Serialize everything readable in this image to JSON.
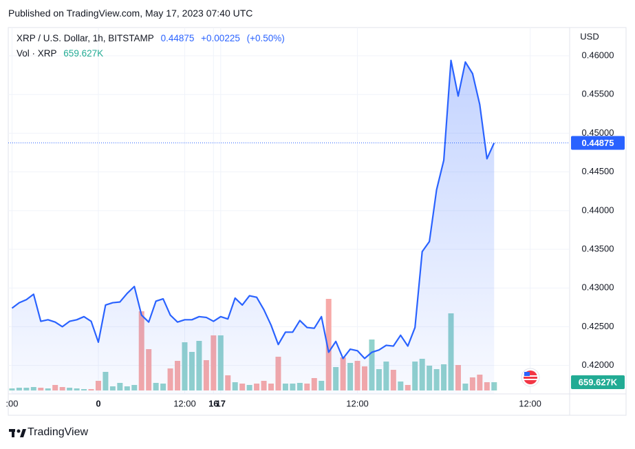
{
  "published": "Published on TradingView.com, May 17, 2023 07:40 UTC",
  "header": {
    "change": "+0.00225",
    "change_pct": "(+0.50%)"
  },
  "brand": "TradingView",
  "chart_data": {
    "type": "line",
    "y_unit": "USD",
    "grid": true,
    "x": [
      -12,
      -11,
      -10,
      -9,
      -8,
      -7,
      -6,
      -5,
      -4,
      -3,
      -2,
      -1,
      0,
      1,
      2,
      3,
      4,
      5,
      6,
      7,
      8,
      9,
      10,
      11,
      12,
      13,
      14,
      15,
      16,
      17,
      18,
      19,
      20,
      21,
      22,
      23,
      24,
      25,
      26,
      27,
      28,
      29,
      30,
      31,
      32,
      33,
      34,
      35,
      36,
      37,
      38,
      39,
      40,
      41,
      42,
      43,
      44,
      45,
      46,
      47,
      48,
      49,
      50,
      51,
      52,
      53,
      54,
      55
    ],
    "xlim": [
      -12.52,
      65.49
    ],
    "xticks": [
      {
        "value": -12,
        "label": ":00"
      },
      0,
      {
        "value": 12,
        "label": "12:00"
      },
      16,
      {
        "value": 36,
        "label": "12:00"
      },
      17,
      {
        "value": 60,
        "label": "12:00"
      }
    ],
    "ylim": [
      0.41632,
      0.46365
    ],
    "yticks": [
      {
        "value": 0.42,
        "label": "0.42000"
      },
      {
        "value": 0.425,
        "label": "0.42500"
      },
      {
        "value": 0.43,
        "label": "0.43000"
      },
      {
        "value": 0.435,
        "label": "0.43500"
      },
      {
        "value": 0.44,
        "label": "0.44000"
      },
      {
        "value": 0.445,
        "label": "0.44500"
      },
      {
        "value": 0.45,
        "label": "0.45000"
      },
      {
        "value": 0.455,
        "label": "0.45500"
      },
      {
        "value": 0.46,
        "label": "0.46000"
      }
    ],
    "series": [
      {
        "name": "XRP / U.S. Dollar, 1h, BITSTAMP",
        "color": "#2962ff",
        "values": [
          0.4274,
          0.4281,
          0.4285,
          0.4292,
          0.4257,
          0.4259,
          0.4256,
          0.425,
          0.4257,
          0.4259,
          0.4263,
          0.4257,
          0.423,
          0.4278,
          0.4281,
          0.4282,
          0.4293,
          0.4302,
          0.4265,
          0.4256,
          0.4283,
          0.4286,
          0.4265,
          0.4256,
          0.4259,
          0.4259,
          0.4263,
          0.4262,
          0.4257,
          0.4263,
          0.426,
          0.4287,
          0.4278,
          0.429,
          0.4288,
          0.4272,
          0.4252,
          0.4227,
          0.4243,
          0.4243,
          0.4258,
          0.4249,
          0.4248,
          0.4263,
          0.4217,
          0.4231,
          0.4209,
          0.4221,
          0.4219,
          0.4209,
          0.4217,
          0.422,
          0.4226,
          0.4225,
          0.4239,
          0.4225,
          0.4249,
          0.4347,
          0.436,
          0.4427,
          0.4465,
          0.4594,
          0.4548,
          0.4592,
          0.4577,
          0.4537,
          0.4467,
          0.44875
        ]
      },
      {
        "name": "Vol · XRP",
        "type": "bar",
        "up_color": "#92d2cc",
        "down_color": "#f7a9a7",
        "last_value_label": "659.627K",
        "values": [
          165000,
          220000,
          220000,
          275000,
          220000,
          165000,
          440000,
          275000,
          220000,
          165000,
          110000,
          110000,
          770000,
          1485000,
          330000,
          605000,
          330000,
          440000,
          6325000,
          3300000,
          605000,
          550000,
          1760000,
          2365000,
          3850000,
          3080000,
          3960000,
          2420000,
          4400000,
          4400000,
          1210000,
          660000,
          550000,
          440000,
          550000,
          770000,
          550000,
          2695000,
          550000,
          550000,
          605000,
          550000,
          990000,
          770000,
          7315000,
          1870000,
          2640000,
          2200000,
          2365000,
          1925000,
          4070000,
          1705000,
          2310000,
          1650000,
          715000,
          440000,
          2310000,
          2530000,
          1980000,
          1705000,
          2090000,
          6160000,
          2035000,
          550000,
          1045000,
          1265000,
          660000,
          659627
        ]
      }
    ]
  }
}
